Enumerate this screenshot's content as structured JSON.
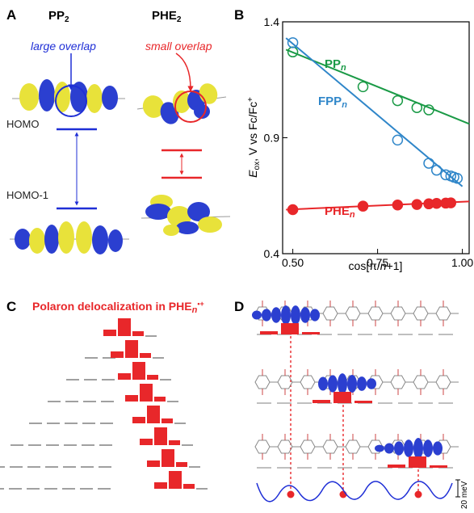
{
  "panels": {
    "A": {
      "label": "A",
      "mol_left": "PP",
      "mol_left_sub": "2",
      "mol_right": "PHE",
      "mol_right_sub": "2",
      "large_overlap": "large overlap",
      "small_overlap": "small overlap",
      "homo": "HOMO",
      "homo1": "HOMO-1"
    },
    "B": {
      "label": "B"
    },
    "C": {
      "label": "C",
      "title_main": "Polaron delocalization in PHE",
      "title_n": "n",
      "title_sup": "•+"
    },
    "D": {
      "label": "D",
      "scale_label": "20 meV"
    }
  },
  "colors": {
    "blue": "#1f2fd6",
    "red": "#e8272a",
    "green": "#1a9a46",
    "lightblue": "#2f86c9",
    "yellow": "#e8e23a",
    "orbital_blue": "#2b3fd0"
  },
  "chart_data": {
    "type": "scatter",
    "xlabel_main": "cos[π/",
    "xlabel_n": "n",
    "xlabel_end": "+1]",
    "ylabel_E": "E",
    "ylabel_sub": "ox",
    "ylabel_rest": ", V vs Fc/Fc",
    "ylabel_sup": "+",
    "xlim": [
      0.47,
      1.02
    ],
    "ylim": [
      0.4,
      1.4
    ],
    "xticks": [
      {
        "v": 0.5,
        "label": "0.50"
      },
      {
        "v": 0.75,
        "label": "0.75"
      },
      {
        "v": 1.0,
        "label": "1.00"
      }
    ],
    "yticks": [
      {
        "v": 0.4,
        "label": "0.4"
      },
      {
        "v": 0.9,
        "label": "0.9"
      },
      {
        "v": 1.4,
        "label": "1.4"
      }
    ],
    "series": [
      {
        "name": "PP",
        "name_sub": "n",
        "color": "#1a9a46",
        "marker": "open",
        "x": [
          0.5,
          0.707,
          0.809,
          0.866,
          0.901
        ],
        "y": [
          1.27,
          1.12,
          1.06,
          1.03,
          1.02
        ],
        "fit": [
          [
            0.48,
            1.28
          ],
          [
            1.02,
            0.96
          ]
        ]
      },
      {
        "name": "FPP",
        "name_sub": "n",
        "color": "#2f86c9",
        "marker": "open",
        "x": [
          0.5,
          0.809,
          0.901,
          0.924,
          0.951,
          0.966,
          0.975,
          0.985
        ],
        "y": [
          1.31,
          0.89,
          0.79,
          0.76,
          0.74,
          0.735,
          0.73,
          0.725
        ],
        "fit": [
          [
            0.48,
            1.33
          ],
          [
            1.0,
            0.69
          ]
        ]
      },
      {
        "name": "PHE",
        "name_sub": "n",
        "color": "#e8272a",
        "marker": "filled",
        "x": [
          0.5,
          0.707,
          0.809,
          0.866,
          0.901,
          0.924,
          0.951,
          0.966
        ],
        "y": [
          0.59,
          0.605,
          0.61,
          0.612,
          0.615,
          0.617,
          0.618,
          0.619
        ],
        "fit": [
          [
            0.48,
            0.59
          ],
          [
            1.02,
            0.625
          ]
        ]
      }
    ]
  }
}
